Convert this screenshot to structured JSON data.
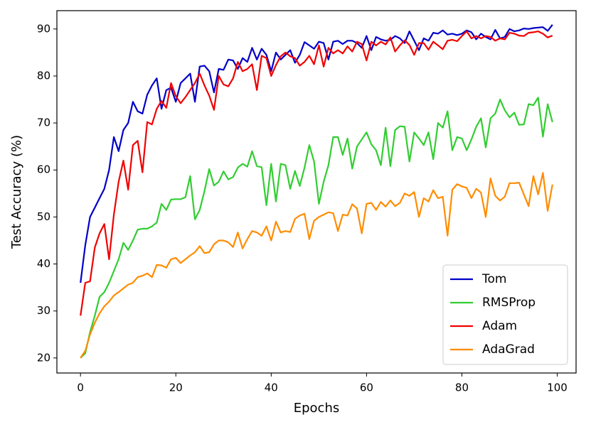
{
  "chart_data": {
    "type": "line",
    "xlabel": "Epochs",
    "ylabel": "Test Accuracy (%)",
    "x": [
      0,
      1,
      2,
      3,
      4,
      5,
      6,
      7,
      8,
      9,
      10,
      11,
      12,
      13,
      14,
      15,
      16,
      17,
      18,
      19,
      20,
      21,
      22,
      23,
      24,
      25,
      26,
      27,
      28,
      29,
      30,
      31,
      32,
      33,
      34,
      35,
      36,
      37,
      38,
      39,
      40,
      41,
      42,
      43,
      44,
      45,
      46,
      47,
      48,
      49,
      50,
      51,
      52,
      53,
      54,
      55,
      56,
      57,
      58,
      59,
      60,
      61,
      62,
      63,
      64,
      65,
      66,
      67,
      68,
      69,
      70,
      71,
      72,
      73,
      74,
      75,
      76,
      77,
      78,
      79,
      80,
      81,
      82,
      83,
      84,
      85,
      86,
      87,
      88,
      89,
      90,
      91,
      92,
      93,
      94,
      95,
      96,
      97,
      98,
      99
    ],
    "xlim": [
      -4.95,
      103.95
    ],
    "xticks": [
      0,
      20,
      40,
      60,
      80,
      100
    ],
    "ylim": [
      16.8,
      93.9
    ],
    "yticks": [
      20,
      30,
      40,
      50,
      60,
      70,
      80,
      90
    ],
    "legend": "lower right",
    "series": [
      {
        "name": "Tom",
        "color": "#0000c8",
        "values": [
          36,
          44,
          50,
          52,
          54,
          56,
          60,
          67,
          64,
          68.5,
          70,
          74.5,
          72.5,
          72,
          76,
          78,
          79.5,
          73,
          77,
          77.5,
          74.5,
          78.5,
          79.5,
          80.5,
          74.5,
          82,
          82.2,
          81,
          76.5,
          81.5,
          81.3,
          83.5,
          83.3,
          81.5,
          83.8,
          83,
          86,
          83.5,
          85.8,
          84.5,
          81,
          85,
          83.5,
          84.5,
          85.5,
          82.8,
          84.5,
          87.2,
          86.5,
          85.8,
          87.3,
          87,
          83.5,
          87.3,
          87.5,
          86.8,
          87.5,
          87.5,
          87,
          86,
          88.5,
          85.5,
          88.3,
          87.8,
          87.5,
          87.7,
          88.5,
          88,
          87,
          89.5,
          87.5,
          85.5,
          88,
          87.5,
          89.2,
          89,
          89.7,
          88.8,
          89,
          88.7,
          89,
          89.7,
          89.3,
          87.8,
          89,
          88.3,
          87.8,
          89.8,
          88,
          88.3,
          90,
          89.5,
          89.7,
          90.1,
          90,
          90.2,
          90.3,
          90.4,
          89.6,
          90.9
        ]
      },
      {
        "name": "RMSProp",
        "color": "#32cd32",
        "values": [
          20,
          21,
          25.5,
          29,
          33,
          34,
          36,
          38.5,
          41,
          44.5,
          43,
          45,
          47.3,
          47.5,
          47.5,
          48,
          48.8,
          52.8,
          51.5,
          53.7,
          53.8,
          53.8,
          54.2,
          58.7,
          49.5,
          51.5,
          55.5,
          60.2,
          56.7,
          57.5,
          59.7,
          58,
          58.5,
          60.5,
          61.3,
          60.7,
          64,
          60.8,
          60.6,
          52.5,
          61.3,
          53.3,
          61.3,
          61,
          56,
          59.8,
          56.6,
          60.5,
          65.3,
          61.8,
          52.8,
          57.5,
          61,
          67,
          67,
          63.2,
          66.7,
          60.3,
          65,
          66.5,
          68,
          65.5,
          64.2,
          61,
          69,
          60.8,
          68.5,
          69.3,
          69.2,
          61.8,
          68,
          66.7,
          65.3,
          68,
          62.3,
          70,
          69,
          72.5,
          64.2,
          67,
          66.7,
          64.2,
          66.5,
          69.2,
          71,
          64.8,
          71,
          72,
          75,
          72.7,
          71.2,
          72.2,
          69.6,
          69.7,
          74,
          73.8,
          75.4,
          67.1,
          74,
          70.2
        ]
      },
      {
        "name": "Adam",
        "color": "#f00000",
        "values": [
          29,
          36,
          36.3,
          43.5,
          46.5,
          48.5,
          41,
          50.5,
          57.5,
          62,
          55.8,
          65.3,
          66.2,
          59.5,
          70.2,
          69.7,
          73,
          74.7,
          73.2,
          78.5,
          75.7,
          74.2,
          75.5,
          77,
          78.5,
          80.5,
          78,
          75.8,
          72.8,
          80,
          78.2,
          77.8,
          79.5,
          83,
          81,
          81.5,
          82.5,
          77,
          84.3,
          83.8,
          80,
          82.3,
          84.2,
          85,
          84.2,
          83.8,
          82.2,
          83,
          84.3,
          82.5,
          86.5,
          82,
          86,
          84.8,
          85.5,
          84.8,
          86.3,
          85.2,
          87.3,
          86.8,
          83.3,
          87.3,
          86.5,
          87.3,
          86.7,
          88.2,
          85.2,
          86.5,
          87.6,
          86.6,
          84.5,
          87,
          87,
          85.6,
          87.3,
          86.5,
          85.7,
          87.5,
          87.7,
          87.4,
          88.5,
          89.5,
          88,
          88.5,
          88,
          88.5,
          88.3,
          87.5,
          88,
          87.8,
          89.2,
          89,
          88.6,
          88.5,
          89.2,
          89.3,
          89.5,
          89,
          88.2,
          88.6
        ]
      },
      {
        "name": "AdaGrad",
        "color": "#ff8c00",
        "values": [
          20,
          21.5,
          25,
          27.5,
          29.5,
          31,
          32,
          33.3,
          34,
          34.8,
          35.6,
          36,
          37.2,
          37.5,
          38,
          37.2,
          39.8,
          39.7,
          39.2,
          41,
          41.3,
          40.2,
          41,
          41.8,
          42.5,
          43.8,
          42.3,
          42.5,
          44.2,
          45,
          45,
          44.6,
          43.6,
          46.7,
          43.3,
          45.3,
          47,
          46.7,
          46,
          48,
          45,
          49,
          46.7,
          47,
          46.8,
          49.6,
          50.3,
          50.7,
          45.3,
          49.2,
          50,
          50.5,
          51,
          50.8,
          47,
          50.5,
          50.3,
          52.7,
          51.8,
          46.5,
          52.8,
          53,
          51.5,
          53.2,
          52.2,
          53.5,
          52.3,
          53,
          55,
          54.5,
          55.3,
          50,
          54,
          53.3,
          55.7,
          54,
          54.3,
          46,
          55.8,
          57,
          56.5,
          56.2,
          54,
          56,
          55.2,
          50,
          58.2,
          54.5,
          53.5,
          54.3,
          57.2,
          57.2,
          57.3,
          54.8,
          52.3,
          58.7,
          54.8,
          59.4,
          51.3,
          56.9
        ]
      }
    ]
  }
}
